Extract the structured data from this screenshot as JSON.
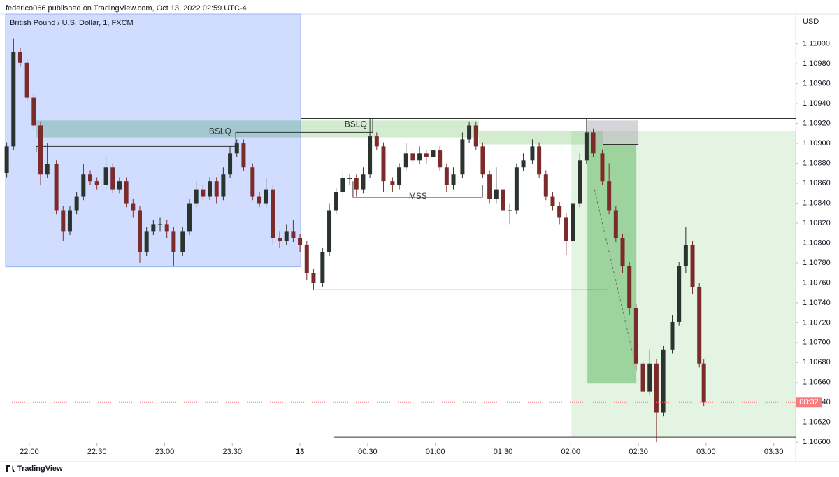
{
  "header": "federico066 published on TradingView.com, Oct 13, 2022 02:59 UTC-4",
  "footer": "TradingView",
  "chart_data": {
    "type": "candlestick",
    "title": "British Pound / U.S. Dollar, 1, FXCM",
    "y_axis_label": "USD",
    "up_color": "#2b332e",
    "down_color": "#7c2b2b",
    "xlim": [
      -10.5,
      339.7
    ],
    "ylim": [
      1.10584,
      1.1103
    ],
    "xticks": [
      {
        "value": 0,
        "label": "22:00"
      },
      {
        "value": 30,
        "label": "22:30"
      },
      {
        "value": 60,
        "label": "23:00"
      },
      {
        "value": 90,
        "label": "23:30"
      },
      {
        "value": 120,
        "label": "13",
        "bold": true
      },
      {
        "value": 150,
        "label": "00:30"
      },
      {
        "value": 180,
        "label": "01:00"
      },
      {
        "value": 210,
        "label": "01:30"
      },
      {
        "value": 240,
        "label": "02:00"
      },
      {
        "value": 270,
        "label": "02:30"
      },
      {
        "value": 300,
        "label": "03:00"
      },
      {
        "value": 330,
        "label": "03:30"
      }
    ],
    "yticks": [
      {
        "value": 1.106,
        "label": "1.10600"
      },
      {
        "value": 1.1062,
        "label": "1.10620"
      },
      {
        "value": 1.1064,
        "label": "1.10640"
      },
      {
        "value": 1.1066,
        "label": "1.10660"
      },
      {
        "value": 1.1068,
        "label": "1.10680"
      },
      {
        "value": 1.107,
        "label": "1.10700"
      },
      {
        "value": 1.1072,
        "label": "1.10720"
      },
      {
        "value": 1.1074,
        "label": "1.10740"
      },
      {
        "value": 1.1076,
        "label": "1.10760"
      },
      {
        "value": 1.1078,
        "label": "1.10780"
      },
      {
        "value": 1.108,
        "label": "1.10800"
      },
      {
        "value": 1.1082,
        "label": "1.10820"
      },
      {
        "value": 1.1084,
        "label": "1.10840"
      },
      {
        "value": 1.1086,
        "label": "1.10860"
      },
      {
        "value": 1.1088,
        "label": "1.10880"
      },
      {
        "value": 1.109,
        "label": "1.10900"
      },
      {
        "value": 1.1092,
        "label": "1.10920"
      },
      {
        "value": 1.1094,
        "label": "1.10940"
      },
      {
        "value": 1.1096,
        "label": "1.10960"
      },
      {
        "value": 1.1098,
        "label": "1.10980"
      },
      {
        "value": 1.11,
        "label": "1.11000"
      }
    ],
    "price_badge": {
      "label": "00:32",
      "value": 1.1064,
      "color": "#f77c80"
    },
    "x": [
      -10,
      -7,
      -4,
      -1,
      2,
      5,
      8,
      12,
      15,
      18,
      21,
      24,
      27,
      30,
      34,
      37,
      40,
      43,
      46,
      49,
      52,
      55,
      58,
      61,
      64,
      68,
      71,
      74,
      77,
      80,
      83,
      86,
      89,
      92,
      95,
      99,
      102,
      105,
      108,
      111,
      114,
      117,
      120,
      123,
      126,
      130,
      133,
      136,
      139,
      142,
      145,
      148,
      151,
      154,
      157,
      161,
      164,
      167,
      170,
      173,
      176,
      179,
      182,
      185,
      188,
      192,
      195,
      198,
      201,
      204,
      207,
      210,
      213,
      216,
      219,
      223,
      226,
      229,
      232,
      235,
      238,
      241,
      244,
      247,
      250,
      254,
      257,
      260,
      263,
      266,
      269,
      272,
      275,
      278,
      281,
      285,
      288,
      291,
      294,
      297,
      299
    ],
    "ohlc": [
      [
        1.1087,
        1.10901,
        1.10866,
        1.10897
      ],
      [
        1.10897,
        1.11005,
        1.10893,
        1.10992
      ],
      [
        1.10992,
        1.10996,
        1.10977,
        1.10981
      ],
      [
        1.10981,
        1.10985,
        1.10942,
        1.10946
      ],
      [
        1.10946,
        1.1095,
        1.10914,
        1.10918
      ],
      [
        1.10918,
        1.10922,
        1.10858,
        1.10869
      ],
      [
        1.10869,
        1.109,
        1.10865,
        1.10879
      ],
      [
        1.10879,
        1.10883,
        1.10829,
        1.10833
      ],
      [
        1.10833,
        1.10837,
        1.10802,
        1.10812
      ],
      [
        1.10812,
        1.10837,
        1.10808,
        1.10833
      ],
      [
        1.10833,
        1.10851,
        1.10829,
        1.10847
      ],
      [
        1.10847,
        1.10879,
        1.10843,
        1.10869
      ],
      [
        1.10869,
        1.10873,
        1.10858,
        1.10862
      ],
      [
        1.10862,
        1.10866,
        1.10854,
        1.10858
      ],
      [
        1.10858,
        1.10887,
        1.10854,
        1.10876
      ],
      [
        1.10876,
        1.1088,
        1.1085,
        1.10854
      ],
      [
        1.10854,
        1.10866,
        1.1085,
        1.10862
      ],
      [
        1.10862,
        1.10866,
        1.10836,
        1.1084
      ],
      [
        1.1084,
        1.10844,
        1.10826,
        1.10833
      ],
      [
        1.10833,
        1.10837,
        1.1078,
        1.10791
      ],
      [
        1.10791,
        1.10816,
        1.10787,
        1.10812
      ],
      [
        1.10812,
        1.10823,
        1.10808,
        1.10819
      ],
      [
        1.10819,
        1.10826,
        1.10812,
        1.10819
      ],
      [
        1.10819,
        1.10823,
        1.10805,
        1.10812
      ],
      [
        1.10812,
        1.10816,
        1.10777,
        1.10791
      ],
      [
        1.10791,
        1.10816,
        1.10787,
        1.10812
      ],
      [
        1.10812,
        1.10844,
        1.10808,
        1.1084
      ],
      [
        1.1084,
        1.10862,
        1.10836,
        1.10854
      ],
      [
        1.10854,
        1.10858,
        1.10843,
        1.10847
      ],
      [
        1.10847,
        1.10866,
        1.10843,
        1.10862
      ],
      [
        1.10862,
        1.10866,
        1.1084,
        1.10847
      ],
      [
        1.10847,
        1.10876,
        1.10843,
        1.10869
      ],
      [
        1.10869,
        1.10897,
        1.10865,
        1.1089
      ],
      [
        1.1089,
        1.10904,
        1.10886,
        1.109
      ],
      [
        1.109,
        1.10904,
        1.10872,
        1.10876
      ],
      [
        1.10876,
        1.1088,
        1.10843,
        1.10847
      ],
      [
        1.10847,
        1.10851,
        1.10836,
        1.1084
      ],
      [
        1.1084,
        1.10865,
        1.10836,
        1.10854
      ],
      [
        1.10854,
        1.10858,
        1.10798,
        1.10805
      ],
      [
        1.10805,
        1.10812,
        1.10795,
        1.10802
      ],
      [
        1.10802,
        1.10819,
        1.10798,
        1.10812
      ],
      [
        1.10812,
        1.10823,
        1.10801,
        1.10805
      ],
      [
        1.10805,
        1.10809,
        1.10791,
        1.10798
      ],
      [
        1.10798,
        1.10802,
        1.10763,
        1.1077
      ],
      [
        1.1077,
        1.10774,
        1.10753,
        1.1076
      ],
      [
        1.1076,
        1.10795,
        1.10756,
        1.10791
      ],
      [
        1.10791,
        1.1084,
        1.10787,
        1.10833
      ],
      [
        1.10833,
        1.10855,
        1.10829,
        1.10851
      ],
      [
        1.10851,
        1.10872,
        1.10847,
        1.10865
      ],
      [
        1.10865,
        1.10869,
        1.10858,
        1.10865
      ],
      [
        1.10865,
        1.10869,
        1.10847,
        1.10854
      ],
      [
        1.10854,
        1.10876,
        1.1085,
        1.10869
      ],
      [
        1.10869,
        1.10925,
        1.10865,
        1.10907
      ],
      [
        1.10907,
        1.10911,
        1.10893,
        1.10897
      ],
      [
        1.10897,
        1.10901,
        1.10851,
        1.10862
      ],
      [
        1.10862,
        1.10866,
        1.10851,
        1.10858
      ],
      [
        1.10858,
        1.1088,
        1.10854,
        1.10876
      ],
      [
        1.10876,
        1.109,
        1.10872,
        1.1089
      ],
      [
        1.1089,
        1.10894,
        1.10879,
        1.10883
      ],
      [
        1.10883,
        1.10897,
        1.10879,
        1.1089
      ],
      [
        1.1089,
        1.10894,
        1.10879,
        1.10886
      ],
      [
        1.10886,
        1.10897,
        1.10882,
        1.10893
      ],
      [
        1.10893,
        1.10897,
        1.10872,
        1.10876
      ],
      [
        1.10876,
        1.1088,
        1.10851,
        1.10858
      ],
      [
        1.10858,
        1.10876,
        1.10854,
        1.10869
      ],
      [
        1.10869,
        1.10911,
        1.10865,
        1.10904
      ],
      [
        1.10904,
        1.10922,
        1.109,
        1.10918
      ],
      [
        1.10918,
        1.10922,
        1.10893,
        1.10897
      ],
      [
        1.10897,
        1.10901,
        1.10865,
        1.10869
      ],
      [
        1.10869,
        1.10873,
        1.1084,
        1.10844
      ],
      [
        1.10844,
        1.10876,
        1.1084,
        1.10854
      ],
      [
        1.10854,
        1.10858,
        1.10826,
        1.10833
      ],
      [
        1.10833,
        1.1084,
        1.10819,
        1.10833
      ],
      [
        1.10833,
        1.1088,
        1.10829,
        1.10876
      ],
      [
        1.10876,
        1.1089,
        1.10872,
        1.10883
      ],
      [
        1.10883,
        1.10904,
        1.10879,
        1.10897
      ],
      [
        1.10897,
        1.10901,
        1.10865,
        1.10869
      ],
      [
        1.10869,
        1.10873,
        1.10843,
        1.10847
      ],
      [
        1.10847,
        1.10851,
        1.10833,
        1.10837
      ],
      [
        1.10837,
        1.10841,
        1.10819,
        1.10826
      ],
      [
        1.10826,
        1.1083,
        1.10788,
        1.10802
      ],
      [
        1.10802,
        1.10844,
        1.10798,
        1.1084
      ],
      [
        1.1084,
        1.1089,
        1.10836,
        1.10883
      ],
      [
        1.10883,
        1.10925,
        1.10879,
        1.10911
      ],
      [
        1.10911,
        1.10915,
        1.10886,
        1.1089
      ],
      [
        1.1089,
        1.10894,
        1.10858,
        1.10862
      ],
      [
        1.10862,
        1.1088,
        1.10829,
        1.10833
      ],
      [
        1.10833,
        1.10837,
        1.10801,
        1.10805
      ],
      [
        1.10805,
        1.10809,
        1.1077,
        1.10777
      ],
      [
        1.10777,
        1.10781,
        1.10728,
        1.10735
      ],
      [
        1.10735,
        1.10739,
        1.10672,
        1.10679
      ],
      [
        1.10679,
        1.10683,
        1.10644,
        1.10651
      ],
      [
        1.10651,
        1.10693,
        1.10647,
        1.10679
      ],
      [
        1.10679,
        1.10683,
        1.106,
        1.1063
      ],
      [
        1.1063,
        1.10697,
        1.10626,
        1.10693
      ],
      [
        1.10693,
        1.10728,
        1.10689,
        1.10721
      ],
      [
        1.10721,
        1.10781,
        1.10717,
        1.10777
      ],
      [
        1.10777,
        1.10816,
        1.1077,
        1.10798
      ],
      [
        1.10798,
        1.10802,
        1.10749,
        1.10756
      ],
      [
        1.10756,
        1.1076,
        1.10675,
        1.10679
      ],
      [
        1.10679,
        1.10683,
        1.10636,
        1.1064
      ]
    ],
    "zones": [
      {
        "x": [
          -10.5,
          120.3
        ],
        "y": [
          1.10776,
          1.1103
        ],
        "color": "rgba(110,150,255,0.32)",
        "border": "#9db4f5"
      },
      {
        "x": [
          3.1,
          120.3
        ],
        "y": [
          1.10906,
          1.10923
        ],
        "color": "rgba(110,175,150,0.45)"
      },
      {
        "x": [
          120.3,
          199.3
        ],
        "y": [
          1.10906,
          1.10923
        ],
        "color": "rgba(130,200,120,0.35)"
      },
      {
        "x": [
          199.3,
          254.2
        ],
        "y": [
          1.10899,
          1.10912
        ],
        "color": "rgba(130,200,120,0.35)"
      },
      {
        "x": [
          240.3,
          339.7
        ],
        "y": [
          1.10605,
          1.10912
        ],
        "color": "rgba(120,200,110,0.2)"
      },
      {
        "x": [
          247.4,
          269.1
        ],
        "y": [
          1.10659,
          1.10899
        ],
        "color": "rgba(70,170,70,0.45)"
      },
      {
        "x": [
          247.4,
          270
        ],
        "y": [
          1.10899,
          1.10923
        ],
        "color": "rgba(150,150,160,0.4)"
      }
    ],
    "lines": [
      {
        "x": [
          3.1,
          3.1,
          91.5,
          91.5,
          152.2,
          152.2
        ],
        "y": [
          1.10891,
          1.10897,
          1.10897,
          1.10911,
          1.10911,
          1.10925
        ]
      },
      {
        "x": [
          120.3,
          339.7
        ],
        "y": [
          1.10925,
          1.10925
        ]
      },
      {
        "x": [
          143.5,
          143.5,
          200.9,
          200.9
        ],
        "y": [
          1.10862,
          1.10846,
          1.10846,
          1.10858
        ]
      },
      {
        "x": [
          126.5,
          256
        ],
        "y": [
          1.10753,
          1.10753
        ]
      },
      {
        "x": [
          135.2,
          339.7
        ],
        "y": [
          1.10605,
          1.10605
        ]
      },
      {
        "x": [
          254.2,
          270
        ],
        "y": [
          1.10899,
          1.10899
        ]
      },
      {
        "x": [
          250.5,
          267.5
        ],
        "y": [
          1.10854,
          1.10689
        ],
        "dashed": true
      }
    ],
    "labels": [
      {
        "text": "BSLQ",
        "x": 84.6,
        "y": 1.10911
      },
      {
        "text": "BSLQ",
        "x": 144.7,
        "y": 1.10918
      },
      {
        "text": "MSS",
        "x": 172.3,
        "y": 1.10846
      }
    ]
  }
}
